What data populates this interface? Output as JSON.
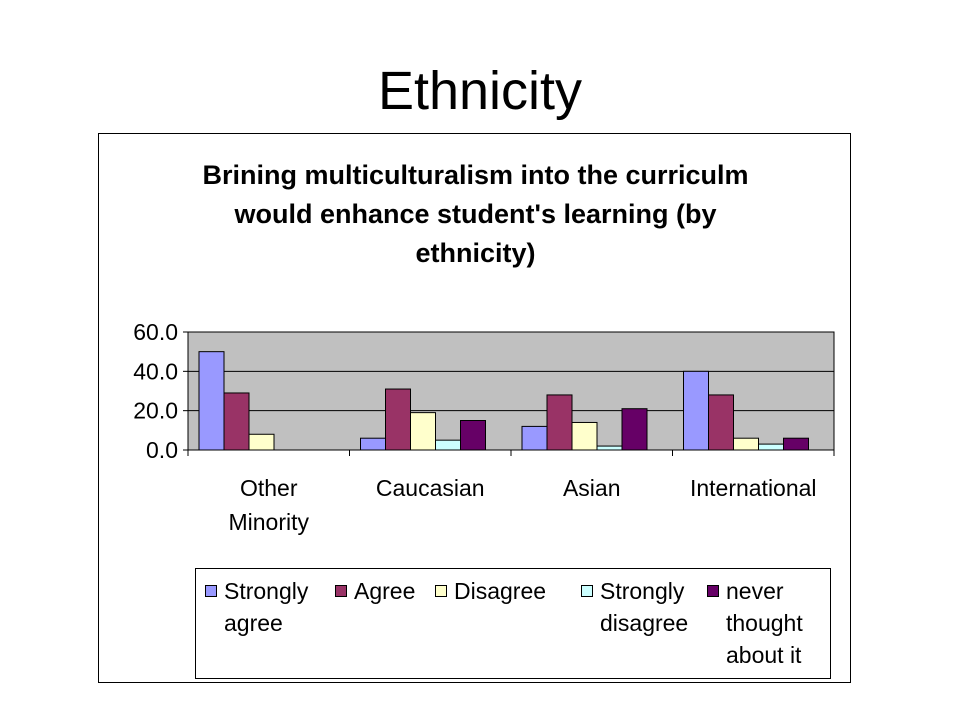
{
  "slide": {
    "title": "Ethnicity"
  },
  "chart_data": {
    "type": "bar",
    "title_lines": [
      "Brining multiculturalism into the curriculm",
      "would enhance student's learning (by",
      "ethnicity)"
    ],
    "categories": [
      [
        "Other",
        "Minority"
      ],
      [
        "Caucasian"
      ],
      [
        "Asian"
      ],
      [
        "International"
      ]
    ],
    "series": [
      {
        "name": "Strongly agree",
        "legend_lines": [
          "Strongly",
          "agree"
        ],
        "color": "#9999ff",
        "values": [
          50,
          6,
          12,
          40
        ]
      },
      {
        "name": "Agree",
        "legend_lines": [
          "Agree"
        ],
        "color": "#993366",
        "values": [
          29,
          31,
          28,
          28
        ]
      },
      {
        "name": "Disagree",
        "legend_lines": [
          "Disagree"
        ],
        "color": "#ffffcc",
        "values": [
          8,
          19,
          14,
          6
        ]
      },
      {
        "name": "Strongly disagree",
        "legend_lines": [
          "Strongly",
          "disagree"
        ],
        "color": "#ccffff",
        "values": [
          0,
          5,
          2,
          3
        ]
      },
      {
        "name": "never thought about it",
        "legend_lines": [
          "never",
          "thought",
          "about it"
        ],
        "color": "#660066",
        "values": [
          0,
          15,
          21,
          6
        ]
      }
    ],
    "ylim": [
      0,
      60
    ],
    "yticks": [
      "0.0",
      "20.0",
      "40.0",
      "60.0"
    ],
    "plot_background": "#c0c0c0",
    "grid": true,
    "legend_position": "bottom"
  }
}
